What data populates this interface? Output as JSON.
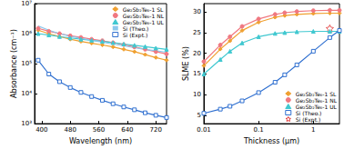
{
  "chart_data": [
    {
      "type": "line",
      "x_label": "Wavelength (nm)",
      "y_label": "Absorbance (cm⁻¹)",
      "log": "y",
      "grid": false,
      "legend": "top-right",
      "xlim": [
        380,
        750
      ],
      "xticks": [
        400,
        480,
        560,
        640,
        720
      ],
      "ylim": [
        1000,
        10000000
      ],
      "yticks": [
        {
          "value": 1000,
          "label": "10³"
        },
        {
          "value": 10000,
          "label": "10⁴"
        },
        {
          "value": 100000,
          "label": "10⁵"
        },
        {
          "value": 1000000,
          "label": "10⁶"
        },
        {
          "value": 10000000,
          "label": "10⁷"
        }
      ],
      "series": [
        {
          "name": "Ge₂Sb₂Te₆-1 SL",
          "color": "#f0a030",
          "marker": "diamond",
          "x": [
            390,
            420,
            450,
            480,
            510,
            540,
            570,
            600,
            630,
            660,
            690,
            720,
            750
          ],
          "values": [
            1300000,
            1000000,
            800000,
            650000,
            550000,
            480000,
            420000,
            360000,
            300000,
            250000,
            200000,
            160000,
            130000
          ]
        },
        {
          "name": "Ge₂Sb₂Te₆-1 NL",
          "color": "#f07880",
          "marker": "circle",
          "x": [
            390,
            420,
            450,
            480,
            510,
            540,
            570,
            600,
            630,
            660,
            690,
            720,
            750
          ],
          "values": [
            1500000,
            1200000,
            1000000,
            850000,
            750000,
            650000,
            580000,
            500000,
            430000,
            360000,
            300000,
            250000,
            210000
          ]
        },
        {
          "name": "Ge₂Sb₂Te₆-1 UL",
          "color": "#40c8d0",
          "marker": "triangle",
          "x": [
            390,
            420,
            450,
            480,
            510,
            540,
            570,
            600,
            630,
            660,
            690,
            720,
            750
          ],
          "values": [
            1000000,
            900000,
            800000,
            720000,
            650000,
            600000,
            550000,
            500000,
            450000,
            410000,
            370000,
            330000,
            300000
          ]
        },
        {
          "name": "Si (Theo.)",
          "color": "#8cc8ec",
          "marker": "none",
          "x": [
            390,
            420,
            450,
            480,
            510,
            540,
            570,
            600,
            630,
            660,
            690,
            720,
            750
          ],
          "values": [
            1800000,
            1300000,
            1000000,
            820000,
            700000,
            600000,
            520000,
            450000,
            390000,
            340000,
            300000,
            270000,
            240000
          ]
        },
        {
          "name": "Si (Expt.)",
          "color": "#3070d0",
          "marker": "open_square",
          "x": [
            390,
            420,
            450,
            480,
            510,
            540,
            570,
            600,
            630,
            660,
            690,
            720,
            750
          ],
          "values": [
            130000,
            45000,
            25000,
            16000,
            11000,
            8000,
            6000,
            4600,
            3600,
            2900,
            2300,
            1900,
            1600
          ]
        }
      ]
    },
    {
      "type": "line",
      "x_label": "Thickness (μm)",
      "y_label": "SLME (%)",
      "log": "x",
      "grid": false,
      "legend": "bottom-right",
      "xlim": [
        0.01,
        3
      ],
      "xticks": [
        0.01,
        0.1,
        1
      ],
      "ylim": [
        3,
        32
      ],
      "yticks": [
        5,
        10,
        15,
        20,
        25,
        30
      ],
      "series": [
        {
          "name": "Ge₂Sb₂Te₆-1 SL",
          "color": "#f0a030",
          "marker": "diamond",
          "x": [
            0.01,
            0.02,
            0.03,
            0.05,
            0.1,
            0.2,
            0.3,
            0.5,
            1,
            2,
            3
          ],
          "values": [
            17,
            21,
            23,
            25.5,
            27.5,
            28.7,
            29.1,
            29.4,
            29.6,
            29.7,
            29.7
          ]
        },
        {
          "name": "Ge₂Sb₂Te₆-1 NL",
          "color": "#f07880",
          "marker": "circle",
          "x": [
            0.01,
            0.02,
            0.03,
            0.05,
            0.1,
            0.2,
            0.3,
            0.5,
            1,
            2,
            3
          ],
          "values": [
            18,
            22,
            24,
            26.5,
            28.3,
            29.4,
            29.8,
            30.1,
            30.3,
            30.4,
            30.4
          ]
        },
        {
          "name": "Ge₂Sb₂Te₆-1 UL",
          "color": "#40c8d0",
          "marker": "triangle",
          "x": [
            0.01,
            0.02,
            0.03,
            0.05,
            0.1,
            0.2,
            0.3,
            0.5,
            1,
            2,
            3
          ],
          "values": [
            15,
            18.5,
            20.5,
            22.5,
            24,
            24.8,
            25,
            25.2,
            25.3,
            25.3,
            25.3
          ]
        },
        {
          "name": "Si (Theo.)",
          "color": "#3070d0",
          "marker": "open_square",
          "x": [
            0.01,
            0.02,
            0.03,
            0.05,
            0.1,
            0.2,
            0.3,
            0.5,
            1,
            2,
            3
          ],
          "values": [
            5.5,
            6.5,
            7.2,
            8.5,
            10.5,
            13,
            14.8,
            17.2,
            20.5,
            23.8,
            25.5
          ]
        },
        {
          "name": "Si (Expt.)",
          "color": "#e03030",
          "marker": "open_star",
          "type": "scatter",
          "x": [
            2
          ],
          "values": [
            26
          ]
        }
      ]
    }
  ]
}
